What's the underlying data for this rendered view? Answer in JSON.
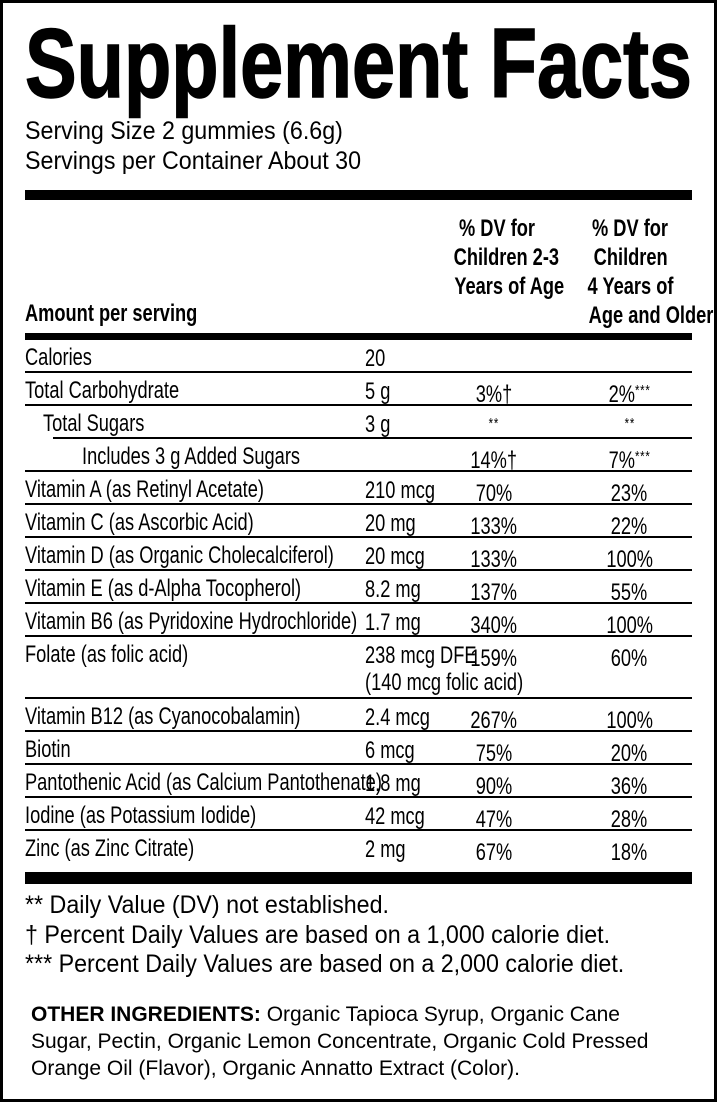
{
  "title": "Supplement Facts",
  "serving": {
    "size": "Serving Size 2 gummies (6.6g)",
    "per_container": "Servings per Container About 30"
  },
  "table": {
    "amount_header": "Amount per serving",
    "dv1_header_lines": [
      "% DV for",
      "Children 2-3",
      "Years of Age"
    ],
    "dv2_header_lines": [
      "% DV for",
      "Children",
      "4 Years of",
      "Age and Older"
    ],
    "rows": [
      {
        "label": "Calories",
        "amount": "20",
        "sep": "full"
      },
      {
        "label": "Total Carbohydrate",
        "amount": "5 g",
        "dv1": "3%†",
        "dv2": "2%",
        "dv2sup": "***",
        "sep": "full"
      },
      {
        "label": "Total Sugars",
        "indent": 1,
        "amount": "3 g",
        "dv1sup": "**",
        "dv2sup": "**",
        "sep": "indent"
      },
      {
        "label": "Includes 3 g Added Sugars",
        "indent": 2,
        "dv1": "14%†",
        "dv2": "7%",
        "dv2sup": "***",
        "sep": "full"
      },
      {
        "label": "Vitamin A (as Retinyl Acetate)",
        "amount": "210 mcg",
        "dv1": "70%",
        "dv2": "23%",
        "sep": "full"
      },
      {
        "label": "Vitamin C (as Ascorbic Acid)",
        "amount": "20 mg",
        "dv1": "133%",
        "dv2": "22%",
        "sep": "full"
      },
      {
        "label": "Vitamin D (as Organic Cholecalciferol)",
        "amount": "20 mcg",
        "dv1": "133%",
        "dv2": "100%",
        "sep": "full"
      },
      {
        "label": "Vitamin E (as d-Alpha Tocopherol)",
        "amount": "8.2 mg",
        "dv1": "137%",
        "dv2": "55%",
        "sep": "full"
      },
      {
        "label": "Vitamin B6 (as Pyridoxine Hydrochloride)",
        "amount": "1.7 mg",
        "dv1": "340%",
        "dv2": "100%",
        "sep": "full"
      },
      {
        "label": "Folate (as folic acid)",
        "amount": "238 mcg DFE",
        "amount2": "(140 mcg folic acid)",
        "dv1": "159%",
        "dv2": "60%",
        "sep": "full"
      },
      {
        "label": "Vitamin B12 (as Cyanocobalamin)",
        "amount": "2.4 mcg",
        "dv1": "267%",
        "dv2": "100%",
        "sep": "full"
      },
      {
        "label": "Biotin",
        "amount": "6 mcg",
        "dv1": "75%",
        "dv2": "20%",
        "sep": "full"
      },
      {
        "label": "Pantothenic Acid (as Calcium Pantothenate)",
        "amount": "1.8 mg",
        "dv1": "90%",
        "dv2": "36%",
        "sep": "full"
      },
      {
        "label": "Iodine (as Potassium Iodide)",
        "amount": "42 mcg",
        "dv1": "47%",
        "dv2": "28%",
        "sep": "full"
      },
      {
        "label": "Zinc (as Zinc Citrate)",
        "amount": "2 mg",
        "dv1": "67%",
        "dv2": "18%",
        "sep": "none"
      }
    ]
  },
  "footnotes": [
    "** Daily Value (DV) not established.",
    "† Percent Daily Values are based on a 1,000 calorie diet.",
    "*** Percent Daily Values are based on a 2,000 calorie diet."
  ],
  "other_ingredients": {
    "label": "OTHER INGREDIENTS:",
    "text": "Organic Tapioca Syrup, Organic Cane Sugar, Pectin, Organic Lemon Concentrate, Organic Cold Pressed Orange Oil (Flavor), Organic Annatto Extract (Color)."
  },
  "colors": {
    "text": "#000000",
    "background": "#ffffff",
    "divider": "#000000"
  }
}
